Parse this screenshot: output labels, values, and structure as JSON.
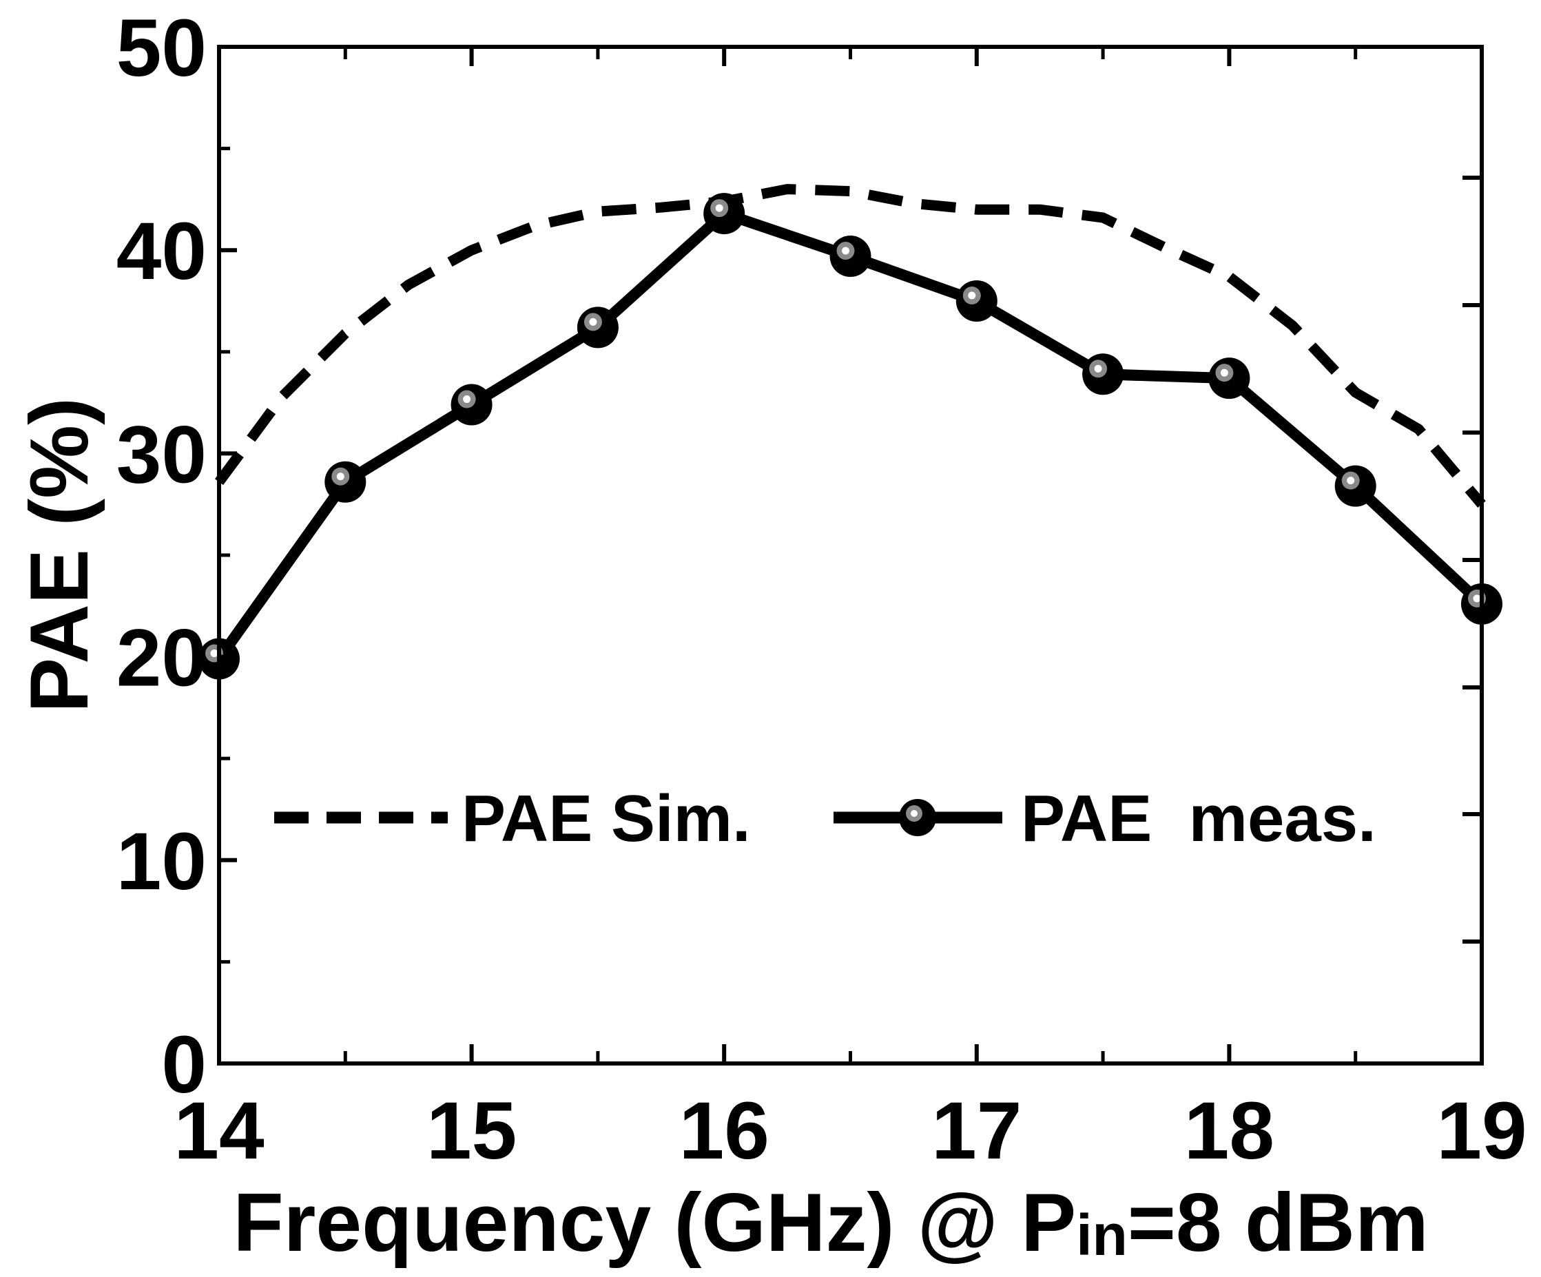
{
  "chart_data": {
    "type": "line",
    "title": "",
    "xlabel": "Frequency (GHz) @ P",
    "xlabel_sub": "in",
    "xlabel_rest": "=8 dBm",
    "ylabel": "PAE (%)",
    "xlim": [
      14,
      19
    ],
    "ylim": [
      0,
      50
    ],
    "xticks": [
      "14",
      "15",
      "16",
      "17",
      "18",
      "19"
    ],
    "yticks": [
      "0",
      "10",
      "20",
      "30",
      "40",
      "50"
    ],
    "grid": false,
    "legend_position": "lower-center",
    "series": [
      {
        "name": "PAE Sim.",
        "style": "dashed",
        "markers": false,
        "x": [
          14.0,
          14.25,
          14.5,
          14.75,
          15.0,
          15.25,
          15.5,
          15.75,
          16.0,
          16.25,
          16.5,
          16.75,
          17.0,
          17.25,
          17.5,
          17.75,
          18.0,
          18.25,
          18.5,
          18.75,
          19.0
        ],
        "y": [
          28.6,
          32.8,
          35.9,
          38.3,
          40.0,
          41.2,
          41.9,
          42.1,
          42.4,
          43.0,
          42.9,
          42.3,
          42.0,
          42.0,
          41.6,
          40.1,
          38.7,
          36.3,
          33.0,
          31.2,
          27.5
        ]
      },
      {
        "name": "PAE  meas.",
        "style": "solid",
        "markers": true,
        "x": [
          14.0,
          14.5,
          15.0,
          15.5,
          16.0,
          16.5,
          17.0,
          17.5,
          18.0,
          18.5,
          19.0
        ],
        "y": [
          19.9,
          28.6,
          32.4,
          36.2,
          41.8,
          39.7,
          37.5,
          33.9,
          33.7,
          28.4,
          22.6
        ]
      }
    ]
  }
}
